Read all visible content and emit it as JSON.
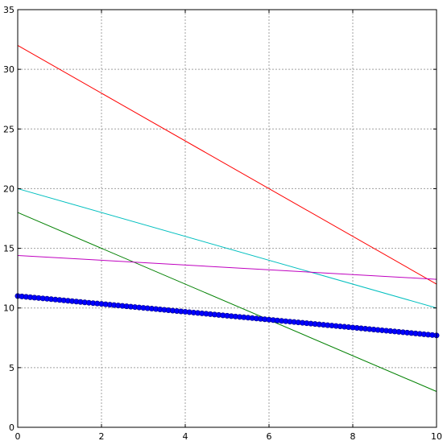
{
  "chart_data": {
    "type": "line",
    "title": "",
    "xlabel": "",
    "ylabel": "",
    "xlim": [
      0,
      10
    ],
    "ylim": [
      0,
      35
    ],
    "grid": true,
    "x_ticks": [
      0,
      2,
      4,
      6,
      8,
      10
    ],
    "y_ticks": [
      0,
      5,
      10,
      15,
      20,
      25,
      30,
      35
    ],
    "series": [
      {
        "color": "#ff0000",
        "style": "line",
        "x": [
          0,
          10
        ],
        "y": [
          32,
          12
        ]
      },
      {
        "color": "#00bfbf",
        "style": "line",
        "x": [
          0,
          10
        ],
        "y": [
          20,
          10
        ]
      },
      {
        "color": "#008000",
        "style": "line",
        "x": [
          0,
          10
        ],
        "y": [
          18,
          3
        ]
      },
      {
        "color": "#bf00bf",
        "style": "line",
        "x": [
          0,
          10
        ],
        "y": [
          14.4,
          12.4
        ]
      },
      {
        "color": "#0000ff",
        "style": "markers",
        "x_start": 0,
        "x_end": 10,
        "y_start": 11,
        "y_end": 7.7,
        "point_count": 101
      }
    ]
  }
}
